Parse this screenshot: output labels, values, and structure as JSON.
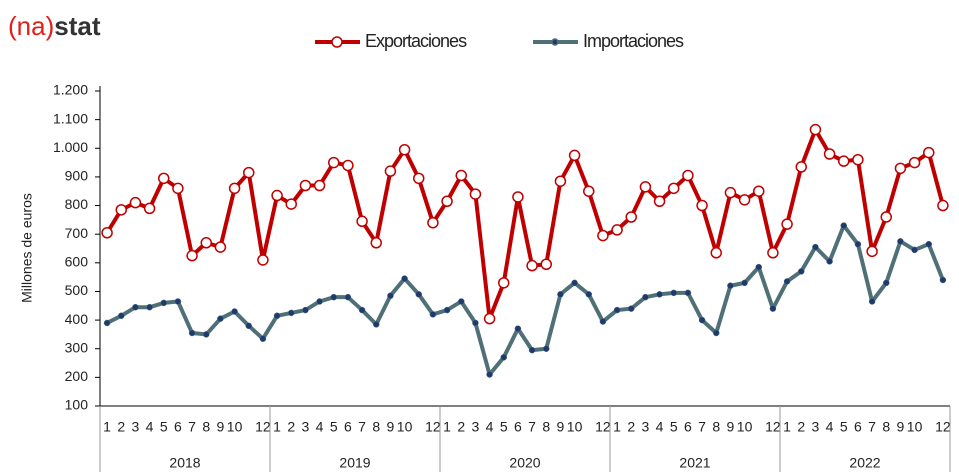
{
  "logo": {
    "left": "(na)",
    "right": "stat"
  },
  "chart_data": {
    "type": "line",
    "y_label": "Millones de euros",
    "categories": [
      "1",
      "2",
      "3",
      "4",
      "5",
      "6",
      "7",
      "8",
      "9",
      "10",
      null,
      "12",
      "1",
      "2",
      "3",
      "4",
      "5",
      "6",
      "7",
      "8",
      "9",
      "10",
      null,
      "12",
      "1",
      "2",
      "3",
      "4",
      "5",
      "6",
      "7",
      "8",
      "9",
      "10",
      null,
      "12",
      "1",
      "2",
      "3",
      "4",
      "5",
      "6",
      "7",
      "8",
      "9",
      "10",
      null,
      "12",
      "1",
      "2",
      "3",
      "4",
      "5",
      "6",
      "7",
      "8",
      "9",
      "10",
      null,
      "12"
    ],
    "years": [
      "2018",
      "2019",
      "2020",
      "2021",
      "2022"
    ],
    "ylim": [
      100,
      1200
    ],
    "yticks": [
      100,
      200,
      300,
      400,
      500,
      600,
      700,
      800,
      900,
      {
        "value": 1000,
        "label": "1.000"
      },
      {
        "value": 1100,
        "label": "1.100"
      },
      {
        "value": 1200,
        "label": "1.200"
      }
    ],
    "grid": false,
    "legend": "top",
    "series": [
      {
        "name": "Exportaciones",
        "color": "#c00000",
        "marker_fill": "#ffffff",
        "values": [
          705,
          785,
          810,
          790,
          895,
          860,
          625,
          670,
          655,
          860,
          915,
          610,
          835,
          805,
          870,
          870,
          950,
          940,
          745,
          670,
          920,
          995,
          895,
          740,
          815,
          905,
          840,
          405,
          530,
          830,
          590,
          595,
          885,
          975,
          850,
          695,
          715,
          760,
          865,
          815,
          860,
          905,
          800,
          635,
          845,
          820,
          850,
          635,
          735,
          935,
          1065,
          980,
          955,
          960,
          640,
          760,
          930,
          950,
          985,
          800
        ]
      },
      {
        "name": "Importaciones",
        "color": "#4f7077",
        "marker_fill": "#1f3a6e",
        "values": [
          390,
          415,
          445,
          445,
          460,
          465,
          355,
          350,
          405,
          430,
          380,
          335,
          415,
          425,
          435,
          465,
          480,
          480,
          435,
          385,
          485,
          545,
          490,
          420,
          435,
          465,
          390,
          210,
          270,
          370,
          295,
          300,
          490,
          530,
          490,
          395,
          435,
          440,
          480,
          490,
          495,
          495,
          400,
          355,
          520,
          530,
          585,
          440,
          535,
          570,
          655,
          605,
          730,
          665,
          465,
          530,
          675,
          645,
          665,
          540
        ]
      }
    ]
  }
}
